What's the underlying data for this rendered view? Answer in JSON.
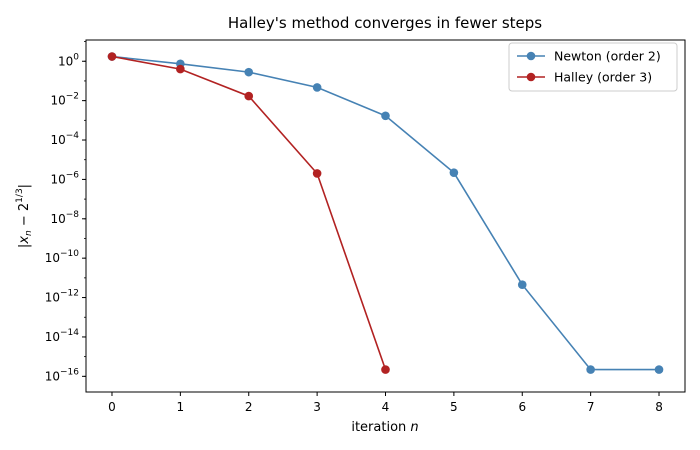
{
  "chart_data": {
    "type": "line",
    "title": "Halley's method converges in fewer steps",
    "xlabel": "iteration n",
    "ylabel": "|x_n − 2^(1/3)|",
    "yscale": "log",
    "xlim": [
      -0.38,
      8.38
    ],
    "ylim": [
      1.6e-17,
      12
    ],
    "grid": false,
    "legend_position": "top-right",
    "x_ticks": [
      0,
      1,
      2,
      3,
      4,
      5,
      6,
      7,
      8
    ],
    "y_ticks": [
      {
        "value": 1,
        "exp": "0"
      },
      {
        "value": 0.01,
        "exp": "−2"
      },
      {
        "value": 0.0001,
        "exp": "−4"
      },
      {
        "value": 1e-06,
        "exp": "−6"
      },
      {
        "value": 1e-08,
        "exp": "−8"
      },
      {
        "value": 1e-10,
        "exp": "−10"
      },
      {
        "value": 1e-12,
        "exp": "−12"
      },
      {
        "value": 1e-14,
        "exp": "−14"
      },
      {
        "value": 1e-16,
        "exp": "−16"
      }
    ],
    "series": [
      {
        "name": "Newton (order 2)",
        "color": "#4682b4",
        "x": [
          0,
          1,
          2,
          3,
          4,
          5,
          6,
          7,
          8
        ],
        "y": [
          1.74,
          0.74,
          0.28,
          0.047,
          0.0017,
          2.2e-06,
          4.5e-12,
          2.2e-16,
          2.2e-16
        ]
      },
      {
        "name": "Halley (order 3)",
        "color": "#b22222",
        "x": [
          0,
          1,
          2,
          3,
          4
        ],
        "y": [
          1.74,
          0.4,
          0.017,
          2e-06,
          2.2e-16
        ]
      }
    ]
  }
}
